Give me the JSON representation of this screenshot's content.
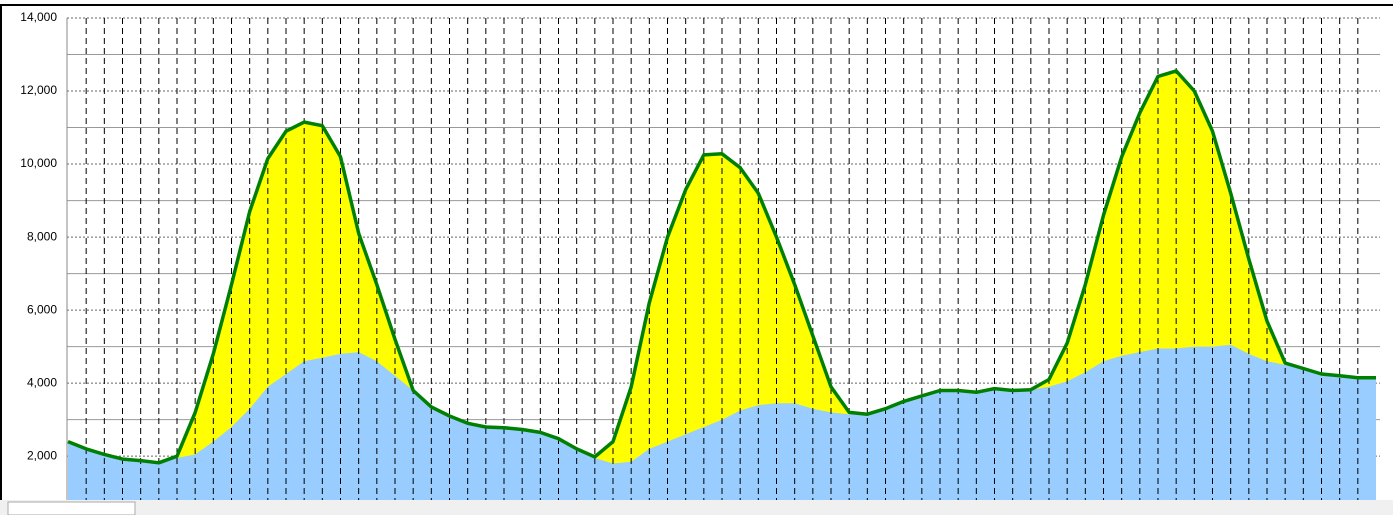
{
  "chart_data": {
    "type": "area",
    "ylim": [
      800,
      14000
    ],
    "yticks": [
      {
        "value": 2000,
        "label": "2,000"
      },
      {
        "value": 4000,
        "label": "4,000"
      },
      {
        "value": 6000,
        "label": "6,000"
      },
      {
        "value": 8000,
        "label": "8,000"
      },
      {
        "value": 10000,
        "label": "10,000"
      },
      {
        "value": 12000,
        "label": "12,000"
      },
      {
        "value": 14000,
        "label": "14,000"
      }
    ],
    "minor_yticks": [
      3000,
      5000,
      7000,
      9000,
      11000,
      13000
    ],
    "grid": true,
    "series": [
      {
        "color": "#99ccff",
        "values": [
          2400,
          2200,
          2050,
          1920,
          1880,
          1820,
          1950,
          2050,
          2400,
          2800,
          3300,
          3900,
          4250,
          4600,
          4700,
          4800,
          4850,
          4600,
          4200,
          3800,
          3350,
          3100,
          2900,
          2800,
          2780,
          2730,
          2650,
          2480,
          2200,
          1950,
          1800,
          1850,
          2200,
          2400,
          2600,
          2800,
          3000,
          3250,
          3400,
          3450,
          3450,
          3300,
          3200,
          3150,
          3150,
          3300,
          3500,
          3650,
          3800,
          3800,
          3750,
          3850,
          3800,
          3820,
          3900,
          4050,
          4300,
          4600,
          4750,
          4850,
          4950,
          4950,
          5000,
          5000,
          5050,
          4800,
          4600,
          4500,
          4400,
          4250,
          4200,
          4150,
          4150
        ]
      },
      {
        "color": "#008000",
        "fill": "#ffff00",
        "values": [
          2400,
          2200,
          2050,
          1920,
          1880,
          1820,
          2000,
          3200,
          4800,
          6700,
          8700,
          10150,
          10900,
          11150,
          11050,
          10200,
          8100,
          6700,
          5200,
          3800,
          3350,
          3100,
          2900,
          2800,
          2780,
          2730,
          2650,
          2480,
          2200,
          1980,
          2400,
          3900,
          6200,
          8000,
          9300,
          10250,
          10280,
          9900,
          9200,
          8000,
          6700,
          5300,
          3900,
          3200,
          3150,
          3300,
          3500,
          3650,
          3800,
          3800,
          3750,
          3850,
          3800,
          3820,
          4100,
          5100,
          6700,
          8600,
          10200,
          11400,
          12400,
          12550,
          12000,
          10900,
          9200,
          7400,
          5700,
          4550,
          4400,
          4250,
          4200,
          4150,
          4150
        ]
      }
    ]
  }
}
